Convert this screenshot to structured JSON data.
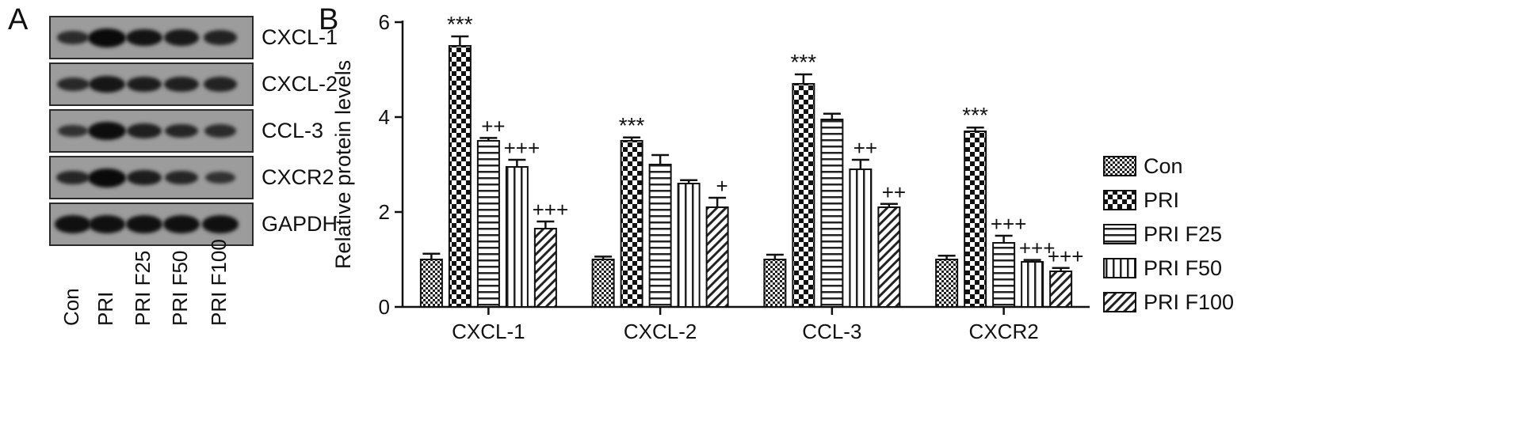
{
  "panel_a": {
    "letter": "A",
    "lanes": [
      "Con",
      "PRI",
      "PRI F25",
      "PRI F50",
      "PRI F100"
    ],
    "blots": [
      {
        "label": "CXCL-1",
        "intensity": [
          0.45,
          1.0,
          0.85,
          0.75,
          0.6
        ]
      },
      {
        "label": "CXCL-2",
        "intensity": [
          0.5,
          0.8,
          0.7,
          0.65,
          0.6
        ]
      },
      {
        "label": "CCL-3",
        "intensity": [
          0.35,
          0.95,
          0.65,
          0.55,
          0.45
        ]
      },
      {
        "label": "CXCR2",
        "intensity": [
          0.55,
          1.0,
          0.7,
          0.55,
          0.35
        ]
      },
      {
        "label": "GAPDH",
        "intensity": [
          0.9,
          0.9,
          0.9,
          0.9,
          0.9
        ]
      }
    ]
  },
  "panel_b": {
    "letter": "B"
  },
  "chart_data": {
    "type": "bar",
    "categories": [
      "CXCL-1",
      "CXCL-2",
      "CCL-3",
      "CXCR2"
    ],
    "ylabel": "Relative protein levels",
    "xlabel": "",
    "ylim": [
      0,
      6
    ],
    "yticks": [
      0,
      2,
      4,
      6
    ],
    "legend_position": "right",
    "series": [
      {
        "name": "Con",
        "pattern": "fine-check",
        "values": [
          1.0,
          1.0,
          1.0,
          1.0
        ],
        "errors": [
          0.12,
          0.06,
          0.1,
          0.08
        ],
        "annotations": [
          "",
          "",
          "",
          ""
        ]
      },
      {
        "name": "PRI",
        "pattern": "checker",
        "values": [
          5.5,
          3.5,
          4.7,
          3.7
        ],
        "errors": [
          0.2,
          0.07,
          0.2,
          0.08
        ],
        "annotations": [
          "***",
          "***",
          "***",
          "***"
        ]
      },
      {
        "name": "PRI F25",
        "pattern": "horizontal",
        "values": [
          3.5,
          3.0,
          3.95,
          1.35
        ],
        "errors": [
          0.06,
          0.2,
          0.12,
          0.15
        ],
        "annotations": [
          "++",
          "",
          "",
          "+++"
        ]
      },
      {
        "name": "PRI F50",
        "pattern": "vertical",
        "values": [
          2.95,
          2.6,
          2.9,
          0.95
        ],
        "errors": [
          0.15,
          0.07,
          0.2,
          0.04
        ],
        "annotations": [
          "+++",
          "",
          "++",
          "+++"
        ]
      },
      {
        "name": "PRI F100",
        "pattern": "diagonal",
        "values": [
          1.65,
          2.1,
          2.1,
          0.75
        ],
        "errors": [
          0.15,
          0.2,
          0.07,
          0.07
        ],
        "annotations": [
          "+++",
          "+",
          "++",
          "+++"
        ]
      }
    ]
  }
}
